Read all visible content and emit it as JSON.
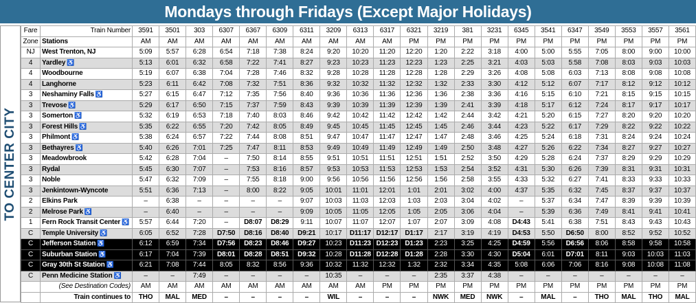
{
  "title": "Mondays through Fridays (Except Major Holidays)",
  "side_label": "TO CENTER CITY",
  "header": {
    "fare": "Fare",
    "zone": "Zone",
    "train_number": "Train Number",
    "stations": "Stations"
  },
  "trains": [
    "3591",
    "3501",
    "303",
    "6307",
    "6367",
    "6309",
    "6311",
    "3209",
    "6313",
    "6317",
    "6321",
    "3219",
    "381",
    "3231",
    "6345",
    "3541",
    "6347",
    "3549",
    "3553",
    "3557",
    "3561"
  ],
  "departure_periods": [
    "AM",
    "AM",
    "AM",
    "AM",
    "AM",
    "AM",
    "AM",
    "AM",
    "AM",
    "AM",
    "PM",
    "PM",
    "PM",
    "PM",
    "PM",
    "PM",
    "PM",
    "PM",
    "PM",
    "PM",
    "PM"
  ],
  "rows": [
    {
      "zone": "NJ",
      "station": "West Trenton, NJ",
      "accessible": false,
      "times": [
        "5:09",
        "5:57",
        "6:28",
        "6:54",
        "7:18",
        "7:38",
        "8:24",
        "9:20",
        "10:20",
        "11:20",
        "12:20",
        "1:20",
        "2:22",
        "3:18",
        "4:00",
        "5:00",
        "5:55",
        "7:05",
        "8:00",
        "9:00",
        "10:00"
      ]
    },
    {
      "zone": "4",
      "station": "Yardley",
      "accessible": true,
      "times": [
        "5:13",
        "6:01",
        "6:32",
        "6:58",
        "7:22",
        "7:41",
        "8:27",
        "9:23",
        "10:23",
        "11:23",
        "12:23",
        "1:23",
        "2:25",
        "3:21",
        "4:03",
        "5:03",
        "5:58",
        "7:08",
        "8:03",
        "9:03",
        "10:03"
      ]
    },
    {
      "zone": "4",
      "station": "Woodbourne",
      "accessible": false,
      "times": [
        "5:19",
        "6:07",
        "6:38",
        "7:04",
        "7:28",
        "7:46",
        "8:32",
        "9:28",
        "10:28",
        "11:28",
        "12:28",
        "1:28",
        "2:29",
        "3:26",
        "4:08",
        "5:08",
        "6:03",
        "7:13",
        "8:08",
        "9:08",
        "10:08"
      ]
    },
    {
      "zone": "4",
      "station": "Langhorne",
      "accessible": false,
      "times": [
        "5:23",
        "6:11",
        "6:42",
        "7:08",
        "7:32",
        "7:51",
        "8:36",
        "9:32",
        "10:32",
        "11:32",
        "12:32",
        "1:32",
        "2:33",
        "3:30",
        "4:12",
        "5:12",
        "6:07",
        "7:17",
        "8:12",
        "9:12",
        "10:12"
      ]
    },
    {
      "zone": "3",
      "station": "Neshaminy Falls",
      "accessible": true,
      "times": [
        "5:27",
        "6:15",
        "6:47",
        "7:12",
        "7:35",
        "7:56",
        "8:40",
        "9:36",
        "10:36",
        "11:36",
        "12:36",
        "1:36",
        "2:38",
        "3:36",
        "4:16",
        "5:15",
        "6:10",
        "7:21",
        "8:15",
        "9:15",
        "10:15"
      ]
    },
    {
      "zone": "3",
      "station": "Trevose",
      "accessible": true,
      "times": [
        "5:29",
        "6:17",
        "6:50",
        "7:15",
        "7:37",
        "7:59",
        "8:43",
        "9:39",
        "10:39",
        "11:39",
        "12:39",
        "1:39",
        "2:41",
        "3:39",
        "4:18",
        "5:17",
        "6:12",
        "7:24",
        "8:17",
        "9:17",
        "10:17"
      ]
    },
    {
      "zone": "3",
      "station": "Somerton",
      "accessible": true,
      "times": [
        "5:32",
        "6:19",
        "6:53",
        "7:18",
        "7:40",
        "8:03",
        "8:46",
        "9:42",
        "10:42",
        "11:42",
        "12:42",
        "1:42",
        "2:44",
        "3:42",
        "4:21",
        "5:20",
        "6:15",
        "7:27",
        "8:20",
        "9:20",
        "10:20"
      ]
    },
    {
      "zone": "3",
      "station": "Forest Hills",
      "accessible": true,
      "times": [
        "5:35",
        "6:22",
        "6:55",
        "7:20",
        "7:42",
        "8:05",
        "8:49",
        "9:45",
        "10:45",
        "11:45",
        "12:45",
        "1:45",
        "2:46",
        "3:44",
        "4:23",
        "5:22",
        "6:17",
        "7:29",
        "8:22",
        "9:22",
        "10:22"
      ]
    },
    {
      "zone": "3",
      "station": "Philmont",
      "accessible": true,
      "times": [
        "5:38",
        "6:24",
        "6:57",
        "7:22",
        "7:44",
        "8:08",
        "8:51",
        "9:47",
        "10:47",
        "11:47",
        "12:47",
        "1:47",
        "2:48",
        "3:46",
        "4:25",
        "5:24",
        "6:18",
        "7:31",
        "8:24",
        "9:24",
        "10:24"
      ]
    },
    {
      "zone": "3",
      "station": "Bethayres",
      "accessible": true,
      "times": [
        "5:40",
        "6:26",
        "7:01",
        "7:25",
        "7:47",
        "8:11",
        "8:53",
        "9:49",
        "10:49",
        "11:49",
        "12:49",
        "1:49",
        "2:50",
        "3:48",
        "4:27",
        "5:26",
        "6:22",
        "7:34",
        "8:27",
        "9:27",
        "10:27"
      ]
    },
    {
      "zone": "3",
      "station": "Meadowbrook",
      "accessible": false,
      "times": [
        "5:42",
        "6:28",
        "7:04",
        "–",
        "7:50",
        "8:14",
        "8:55",
        "9:51",
        "10:51",
        "11:51",
        "12:51",
        "1:51",
        "2:52",
        "3:50",
        "4:29",
        "5:28",
        "6:24",
        "7:37",
        "8:29",
        "9:29",
        "10:29"
      ]
    },
    {
      "zone": "3",
      "station": "Rydal",
      "accessible": false,
      "times": [
        "5:45",
        "6:30",
        "7:07",
        "–",
        "7:53",
        "8:16",
        "8:57",
        "9:53",
        "10:53",
        "11:53",
        "12:53",
        "1:53",
        "2:54",
        "3:52",
        "4:31",
        "5:30",
        "6:26",
        "7:39",
        "8:31",
        "9:31",
        "10:31"
      ]
    },
    {
      "zone": "3",
      "station": "Noble",
      "accessible": false,
      "times": [
        "5:47",
        "6:32",
        "7:09",
        "–",
        "7:55",
        "8:18",
        "9:00",
        "9:56",
        "10:56",
        "11:56",
        "12:56",
        "1:56",
        "2:58",
        "3:55",
        "4:33",
        "5:32",
        "6:27",
        "7:41",
        "8:33",
        "9:33",
        "10:33"
      ]
    },
    {
      "zone": "3",
      "station": "Jenkintown-Wyncote",
      "accessible": false,
      "times": [
        "5:51",
        "6:36",
        "7:13",
        "–",
        "8:00",
        "8:22",
        "9:05",
        "10:01",
        "11:01",
        "12:01",
        "1:01",
        "2:01",
        "3:02",
        "4:00",
        "4:37",
        "5:35",
        "6:32",
        "7:45",
        "8:37",
        "9:37",
        "10:37"
      ]
    },
    {
      "zone": "2",
      "station": "Elkins Park",
      "accessible": false,
      "times": [
        "–",
        "6:38",
        "–",
        "–",
        "–",
        "–",
        "9:07",
        "10:03",
        "11:03",
        "12:03",
        "1:03",
        "2:03",
        "3:04",
        "4:02",
        "–",
        "5:37",
        "6:34",
        "7:47",
        "8:39",
        "9:39",
        "10:39"
      ]
    },
    {
      "zone": "2",
      "station": "Melrose Park",
      "accessible": true,
      "times": [
        "–",
        "6:40",
        "–",
        "–",
        "–",
        "–",
        "9:09",
        "10:05",
        "11:05",
        "12:05",
        "1:05",
        "2:05",
        "3:06",
        "4:04",
        "–",
        "5:39",
        "6:36",
        "7:49",
        "8:41",
        "9:41",
        "10:41"
      ]
    },
    {
      "zone": "1",
      "station": "Fern Rock Transit Center",
      "accessible": true,
      "times": [
        "5:57",
        "6:44",
        "7:20",
        "–",
        "D8:07",
        "D8:29",
        "9:11",
        "10:07",
        "11:07",
        "12:07",
        "1:07",
        "2:07",
        "3:09",
        "4:08",
        "D4:43",
        "5:41",
        "6:38",
        "7:51",
        "8:43",
        "9:43",
        "10:43"
      ]
    },
    {
      "zone": "C",
      "station": "Temple University",
      "accessible": true,
      "times": [
        "6:05",
        "6:52",
        "7:28",
        "D7:50",
        "D8:16",
        "D8:40",
        "D9:21",
        "10:17",
        "D11:17",
        "D12:17",
        "D1:17",
        "2:17",
        "3:19",
        "4:19",
        "D4:53",
        "5:50",
        "D6:50",
        "8:00",
        "8:52",
        "9:52",
        "10:52"
      ]
    },
    {
      "zone": "C",
      "station": "Jefferson Station",
      "accessible": true,
      "times": [
        "6:12",
        "6:59",
        "7:34",
        "D7:56",
        "D8:23",
        "D8:46",
        "D9:27",
        "10:23",
        "D11:23",
        "D12:23",
        "D1:23",
        "2:23",
        "3:25",
        "4:25",
        "D4:59",
        "5:56",
        "D6:56",
        "8:06",
        "8:58",
        "9:58",
        "10:58"
      ]
    },
    {
      "zone": "C",
      "station": "Suburban Station",
      "accessible": true,
      "times": [
        "6:17",
        "7:04",
        "7:39",
        "D8:01",
        "D8:28",
        "D8:51",
        "D9:32",
        "10:28",
        "D11:28",
        "D12:28",
        "D1:28",
        "2:28",
        "3:30",
        "4:30",
        "D5:04",
        "6:01",
        "D7:01",
        "8:11",
        "9:03",
        "10:03",
        "11:03"
      ]
    },
    {
      "zone": "C",
      "station": "Gray 30th St Station",
      "accessible": true,
      "times": [
        "6:21",
        "7:08",
        "7:44",
        "8:05",
        "8:32",
        "8:56",
        "9:36",
        "10:32",
        "11:32",
        "12:32",
        "1:32",
        "2:32",
        "3:34",
        "4:35",
        "5:08",
        "6:06",
        "7:06",
        "8:16",
        "9:08",
        "10:08",
        "11:08"
      ]
    },
    {
      "zone": "C",
      "station": "Penn Medicine Station",
      "accessible": true,
      "times": [
        "–",
        "–",
        "7:49",
        "–",
        "–",
        "–",
        "–",
        "10:35",
        "–",
        "–",
        "–",
        "2:35",
        "3:37",
        "4:38",
        "–",
        "–",
        "–",
        "–",
        "–",
        "–",
        "–"
      ]
    }
  ],
  "footer": {
    "periods_label": "(See Destination Codes)",
    "periods": [
      "AM",
      "AM",
      "AM",
      "AM",
      "AM",
      "AM",
      "AM",
      "AM",
      "AM",
      "PM",
      "PM",
      "PM",
      "PM",
      "PM",
      "PM",
      "PM",
      "PM",
      "PM",
      "PM",
      "PM",
      "PM"
    ],
    "continues_label": "Train continues to",
    "continues": [
      "THO",
      "MAL",
      "MED",
      "–",
      "–",
      "–",
      "–",
      "WIL",
      "–",
      "–",
      "–",
      "NWK",
      "MED",
      "NWK",
      "–",
      "MAL",
      "–",
      "THO",
      "MAL",
      "THO",
      "MAL"
    ]
  }
}
